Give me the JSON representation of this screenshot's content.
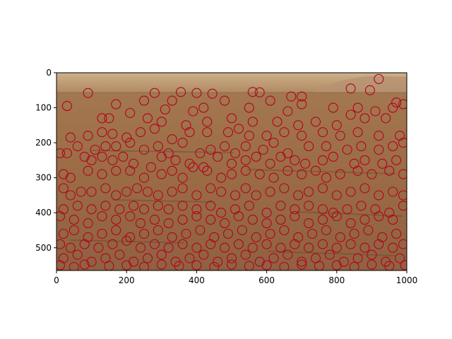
{
  "chart_data": {
    "type": "scatter",
    "title": "",
    "xlabel": "",
    "ylabel": "",
    "xlim": [
      0,
      1000
    ],
    "ylim": [
      565,
      0
    ],
    "y_inverted": true,
    "grid": false,
    "legend": "none",
    "x_ticks": [
      "0",
      "200",
      "400",
      "600",
      "800",
      "1000"
    ],
    "y_ticks": [
      "0",
      "100",
      "200",
      "300",
      "400",
      "500"
    ],
    "marker": "open-circle",
    "marker_color": "#b5001f",
    "background": "terrain-photograph",
    "points": [
      [
        90,
        58
      ],
      [
        280,
        58
      ],
      [
        355,
        55
      ],
      [
        400,
        58
      ],
      [
        445,
        60
      ],
      [
        560,
        55
      ],
      [
        580,
        56
      ],
      [
        670,
        68
      ],
      [
        700,
        68
      ],
      [
        840,
        45
      ],
      [
        920,
        18
      ],
      [
        895,
        50
      ],
      [
        970,
        85
      ],
      [
        30,
        95
      ],
      [
        250,
        80
      ],
      [
        310,
        105
      ],
      [
        330,
        80
      ],
      [
        390,
        110
      ],
      [
        420,
        100
      ],
      [
        480,
        80
      ],
      [
        550,
        100
      ],
      [
        610,
        80
      ],
      [
        660,
        110
      ],
      [
        700,
        90
      ],
      [
        790,
        100
      ],
      [
        860,
        100
      ],
      [
        910,
        110
      ],
      [
        960,
        100
      ],
      [
        990,
        90
      ],
      [
        130,
        130
      ],
      [
        150,
        130
      ],
      [
        170,
        90
      ],
      [
        210,
        115
      ],
      [
        260,
        130
      ],
      [
        300,
        140
      ],
      [
        370,
        150
      ],
      [
        430,
        140
      ],
      [
        500,
        130
      ],
      [
        560,
        140
      ],
      [
        630,
        140
      ],
      [
        690,
        150
      ],
      [
        740,
        140
      ],
      [
        800,
        150
      ],
      [
        840,
        120
      ],
      [
        880,
        130
      ],
      [
        940,
        130
      ],
      [
        40,
        185
      ],
      [
        90,
        180
      ],
      [
        130,
        170
      ],
      [
        160,
        175
      ],
      [
        200,
        185
      ],
      [
        240,
        170
      ],
      [
        280,
        160
      ],
      [
        330,
        190
      ],
      [
        380,
        170
      ],
      [
        430,
        170
      ],
      [
        490,
        170
      ],
      [
        520,
        160
      ],
      [
        550,
        180
      ],
      [
        600,
        180
      ],
      [
        650,
        170
      ],
      [
        700,
        180
      ],
      [
        760,
        170
      ],
      [
        810,
        180
      ],
      [
        860,
        170
      ],
      [
        920,
        180
      ],
      [
        980,
        180
      ],
      [
        60,
        210
      ],
      [
        110,
        220
      ],
      [
        140,
        210
      ],
      [
        170,
        210
      ],
      [
        210,
        200
      ],
      [
        250,
        220
      ],
      [
        290,
        210
      ],
      [
        320,
        230
      ],
      [
        360,
        200
      ],
      [
        410,
        230
      ],
      [
        440,
        220
      ],
      [
        480,
        210
      ],
      [
        510,
        230
      ],
      [
        540,
        210
      ],
      [
        590,
        220
      ],
      [
        620,
        200
      ],
      [
        660,
        230
      ],
      [
        720,
        210
      ],
      [
        770,
        210
      ],
      [
        830,
        220
      ],
      [
        870,
        210
      ],
      [
        920,
        220
      ],
      [
        960,
        210
      ],
      [
        990,
        200
      ],
      [
        10,
        230
      ],
      [
        30,
        230
      ],
      [
        80,
        240
      ],
      [
        100,
        250
      ],
      [
        130,
        240
      ],
      [
        160,
        250
      ],
      [
        190,
        240
      ],
      [
        220,
        260
      ],
      [
        270,
        270
      ],
      [
        300,
        240
      ],
      [
        340,
        250
      ],
      [
        380,
        260
      ],
      [
        420,
        270
      ],
      [
        460,
        240
      ],
      [
        500,
        260
      ],
      [
        540,
        250
      ],
      [
        570,
        240
      ],
      [
        610,
        260
      ],
      [
        640,
        240
      ],
      [
        680,
        250
      ],
      [
        710,
        260
      ],
      [
        760,
        250
      ],
      [
        790,
        240
      ],
      [
        850,
        260
      ],
      [
        880,
        250
      ],
      [
        930,
        260
      ],
      [
        970,
        250
      ],
      [
        20,
        290
      ],
      [
        40,
        300
      ],
      [
        90,
        280
      ],
      [
        130,
        290
      ],
      [
        170,
        280
      ],
      [
        210,
        280
      ],
      [
        250,
        300
      ],
      [
        300,
        290
      ],
      [
        330,
        280
      ],
      [
        360,
        300
      ],
      [
        390,
        270
      ],
      [
        430,
        280
      ],
      [
        470,
        300
      ],
      [
        500,
        290
      ],
      [
        540,
        280
      ],
      [
        580,
        290
      ],
      [
        620,
        300
      ],
      [
        660,
        280
      ],
      [
        700,
        290
      ],
      [
        740,
        280
      ],
      [
        770,
        300
      ],
      [
        810,
        290
      ],
      [
        860,
        280
      ],
      [
        900,
        290
      ],
      [
        950,
        280
      ],
      [
        990,
        290
      ],
      [
        20,
        330
      ],
      [
        40,
        350
      ],
      [
        70,
        340
      ],
      [
        100,
        340
      ],
      [
        140,
        330
      ],
      [
        170,
        350
      ],
      [
        200,
        340
      ],
      [
        230,
        330
      ],
      [
        260,
        340
      ],
      [
        290,
        350
      ],
      [
        330,
        340
      ],
      [
        360,
        330
      ],
      [
        400,
        350
      ],
      [
        440,
        330
      ],
      [
        470,
        340
      ],
      [
        510,
        350
      ],
      [
        540,
        330
      ],
      [
        570,
        350
      ],
      [
        610,
        340
      ],
      [
        650,
        330
      ],
      [
        690,
        350
      ],
      [
        720,
        340
      ],
      [
        760,
        330
      ],
      [
        800,
        350
      ],
      [
        840,
        340
      ],
      [
        880,
        330
      ],
      [
        920,
        350
      ],
      [
        960,
        340
      ],
      [
        990,
        350
      ],
      [
        20,
        390
      ],
      [
        60,
        380
      ],
      [
        100,
        390
      ],
      [
        140,
        380
      ],
      [
        180,
        390
      ],
      [
        220,
        380
      ],
      [
        250,
        390
      ],
      [
        290,
        380
      ],
      [
        320,
        390
      ],
      [
        360,
        380
      ],
      [
        400,
        390
      ],
      [
        440,
        380
      ],
      [
        470,
        400
      ],
      [
        510,
        390
      ],
      [
        550,
        380
      ],
      [
        600,
        400
      ],
      [
        640,
        380
      ],
      [
        680,
        390
      ],
      [
        720,
        380
      ],
      [
        760,
        390
      ],
      [
        790,
        400
      ],
      [
        830,
        390
      ],
      [
        870,
        380
      ],
      [
        910,
        390
      ],
      [
        950,
        400
      ],
      [
        990,
        380
      ],
      [
        10,
        410
      ],
      [
        50,
        420
      ],
      [
        90,
        430
      ],
      [
        130,
        410
      ],
      [
        170,
        420
      ],
      [
        210,
        410
      ],
      [
        240,
        430
      ],
      [
        280,
        420
      ],
      [
        320,
        430
      ],
      [
        360,
        420
      ],
      [
        400,
        410
      ],
      [
        440,
        420
      ],
      [
        480,
        430
      ],
      [
        520,
        410
      ],
      [
        560,
        420
      ],
      [
        600,
        430
      ],
      [
        640,
        420
      ],
      [
        680,
        410
      ],
      [
        720,
        430
      ],
      [
        760,
        420
      ],
      [
        800,
        410
      ],
      [
        840,
        430
      ],
      [
        880,
        420
      ],
      [
        920,
        410
      ],
      [
        960,
        420
      ],
      [
        20,
        460
      ],
      [
        50,
        450
      ],
      [
        90,
        470
      ],
      [
        130,
        460
      ],
      [
        170,
        450
      ],
      [
        210,
        470
      ],
      [
        250,
        460
      ],
      [
        290,
        450
      ],
      [
        330,
        470
      ],
      [
        370,
        460
      ],
      [
        410,
        450
      ],
      [
        450,
        470
      ],
      [
        490,
        460
      ],
      [
        530,
        450
      ],
      [
        570,
        470
      ],
      [
        610,
        460
      ],
      [
        650,
        450
      ],
      [
        690,
        470
      ],
      [
        730,
        460
      ],
      [
        770,
        450
      ],
      [
        810,
        470
      ],
      [
        850,
        460
      ],
      [
        890,
        450
      ],
      [
        930,
        470
      ],
      [
        970,
        460
      ],
      [
        10,
        490
      ],
      [
        40,
        500
      ],
      [
        80,
        490
      ],
      [
        120,
        500
      ],
      [
        160,
        490
      ],
      [
        200,
        480
      ],
      [
        240,
        500
      ],
      [
        280,
        490
      ],
      [
        320,
        500
      ],
      [
        360,
        490
      ],
      [
        400,
        500
      ],
      [
        440,
        490
      ],
      [
        480,
        500
      ],
      [
        520,
        490
      ],
      [
        560,
        500
      ],
      [
        600,
        490
      ],
      [
        640,
        500
      ],
      [
        680,
        490
      ],
      [
        720,
        500
      ],
      [
        760,
        490
      ],
      [
        800,
        500
      ],
      [
        840,
        490
      ],
      [
        880,
        500
      ],
      [
        920,
        490
      ],
      [
        960,
        500
      ],
      [
        990,
        490
      ],
      [
        20,
        530
      ],
      [
        60,
        520
      ],
      [
        100,
        540
      ],
      [
        140,
        530
      ],
      [
        180,
        520
      ],
      [
        220,
        540
      ],
      [
        260,
        530
      ],
      [
        300,
        520
      ],
      [
        340,
        540
      ],
      [
        380,
        530
      ],
      [
        420,
        520
      ],
      [
        460,
        540
      ],
      [
        500,
        530
      ],
      [
        540,
        520
      ],
      [
        580,
        540
      ],
      [
        620,
        530
      ],
      [
        660,
        520
      ],
      [
        700,
        540
      ],
      [
        740,
        530
      ],
      [
        780,
        520
      ],
      [
        820,
        540
      ],
      [
        860,
        530
      ],
      [
        900,
        520
      ],
      [
        940,
        540
      ],
      [
        980,
        530
      ],
      [
        10,
        550
      ],
      [
        50,
        555
      ],
      [
        80,
        548
      ],
      [
        150,
        552
      ],
      [
        200,
        550
      ],
      [
        250,
        555
      ],
      [
        300,
        548
      ],
      [
        350,
        552
      ],
      [
        400,
        550
      ],
      [
        450,
        555
      ],
      [
        500,
        548
      ],
      [
        550,
        552
      ],
      [
        600,
        550
      ],
      [
        650,
        555
      ],
      [
        700,
        548
      ],
      [
        750,
        552
      ],
      [
        800,
        550
      ],
      [
        850,
        555
      ],
      [
        900,
        548
      ],
      [
        950,
        552
      ],
      [
        995,
        550
      ]
    ]
  }
}
